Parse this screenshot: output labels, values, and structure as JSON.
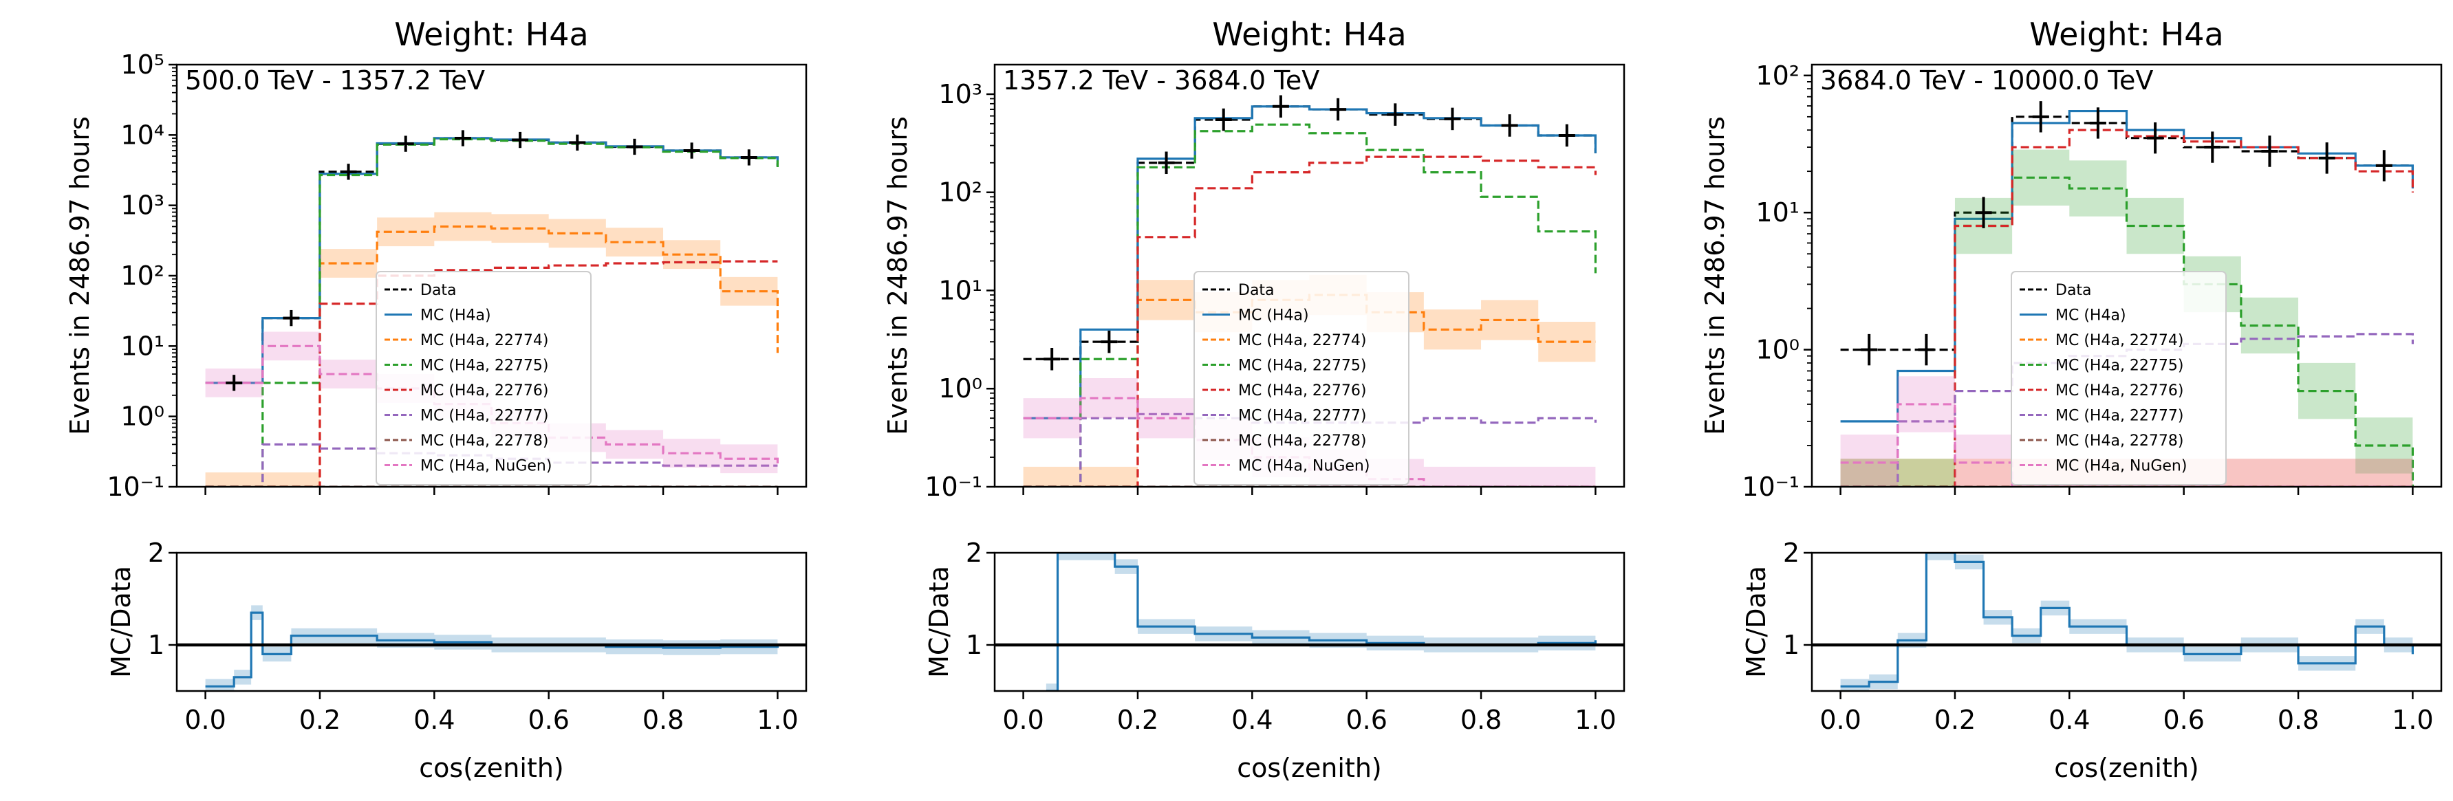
{
  "chart_data": [
    {
      "type": "line",
      "title": "Weight: H4a",
      "annotation": "500.0 TeV - 1357.2 TeV",
      "ylabel": "Events in 2486.97 hours",
      "xlabel": "cos(zenith)",
      "yscale": "log",
      "ylim": [
        0.1,
        100000
      ],
      "xlim": [
        -0.05,
        1.05
      ],
      "x_ticks": [
        0.0,
        0.2,
        0.4,
        0.6,
        0.8,
        1.0
      ],
      "x_tick_labels": [
        "0.0",
        "0.2",
        "0.4",
        "0.6",
        "0.8",
        "1.0"
      ],
      "y_ticks": [
        0.1,
        1,
        10,
        100,
        1000,
        10000,
        100000
      ],
      "y_tick_labels": [
        "10⁻¹",
        "10⁰",
        "10¹",
        "10²",
        "10³",
        "10⁴",
        "10⁵"
      ],
      "legend_position": "center",
      "x": [
        0.0,
        0.1,
        0.2,
        0.3,
        0.4,
        0.5,
        0.6,
        0.7,
        0.8,
        0.9,
        1.0
      ],
      "series": [
        {
          "name": "Data",
          "style": "dashed",
          "color": "#000000",
          "values": [
            3,
            25,
            3000,
            7500,
            9000,
            8500,
            7800,
            6800,
            6000,
            4800,
            3600
          ]
        },
        {
          "name": "MC (H4a)",
          "style": "solid",
          "color": "#1f77b4",
          "values": [
            3,
            25,
            2800,
            7600,
            9000,
            8600,
            7800,
            6900,
            6000,
            4800,
            3600
          ]
        },
        {
          "name": "MC (H4a, 22774)",
          "style": "dashed",
          "color": "#ff7f0e",
          "band": true,
          "values": [
            0.1,
            0.1,
            150,
            420,
            500,
            470,
            400,
            300,
            200,
            60,
            8
          ]
        },
        {
          "name": "MC (H4a, 22775)",
          "style": "dashed",
          "color": "#2ca02c",
          "values": [
            0.1,
            3,
            2700,
            7300,
            8700,
            8300,
            7500,
            6700,
            5800,
            4700,
            3500
          ]
        },
        {
          "name": "MC (H4a, 22776)",
          "style": "dashed",
          "color": "#d62728",
          "values": [
            0.1,
            0.1,
            40,
            100,
            120,
            130,
            140,
            150,
            155,
            160,
            160
          ]
        },
        {
          "name": "MC (H4a, 22777)",
          "style": "dashed",
          "color": "#9467bd",
          "values": [
            0.1,
            0.4,
            0.35,
            0.3,
            0.28,
            0.25,
            0.22,
            0.22,
            0.2,
            0.2,
            0.2
          ]
        },
        {
          "name": "MC (H4a, 22778)",
          "style": "dashed",
          "color": "#8c564b",
          "values": [
            0.1,
            0.1,
            0.1,
            0.1,
            0.1,
            0.1,
            0.1,
            0.1,
            0.1,
            0.1,
            0.1
          ]
        },
        {
          "name": "MC (H4a, NuGen)",
          "style": "dashed",
          "color": "#e377c2",
          "band": true,
          "values": [
            3,
            10,
            4,
            2.5,
            1.5,
            0.8,
            0.5,
            0.4,
            0.3,
            0.25,
            0.2
          ]
        }
      ],
      "ratio": {
        "ylabel": "MC/Data",
        "ylim": [
          0.5,
          2
        ],
        "y_ticks": [
          1,
          2
        ],
        "y_tick_labels": [
          "1",
          "2"
        ],
        "x": [
          0.0,
          0.05,
          0.08,
          0.1,
          0.15,
          0.2,
          0.3,
          0.4,
          0.5,
          0.6,
          0.7,
          0.8,
          0.9,
          1.0
        ],
        "values": [
          0.55,
          0.65,
          1.35,
          0.9,
          1.1,
          1.1,
          1.05,
          1.03,
          1.0,
          1.0,
          0.98,
          0.97,
          0.98,
          1.0
        ]
      }
    },
    {
      "type": "line",
      "title": "Weight: H4a",
      "annotation": "1357.2 TeV - 3684.0 TeV",
      "ylabel": "Events in 2486.97 hours",
      "xlabel": "cos(zenith)",
      "yscale": "log",
      "ylim": [
        0.1,
        2000
      ],
      "xlim": [
        -0.05,
        1.05
      ],
      "x_ticks": [
        0.0,
        0.2,
        0.4,
        0.6,
        0.8,
        1.0
      ],
      "x_tick_labels": [
        "0.0",
        "0.2",
        "0.4",
        "0.6",
        "0.8",
        "1.0"
      ],
      "y_ticks": [
        0.1,
        1,
        10,
        100,
        1000
      ],
      "y_tick_labels": [
        "10⁻¹",
        "10⁰",
        "10¹",
        "10²",
        "10³"
      ],
      "legend_position": "center",
      "x": [
        0.0,
        0.1,
        0.2,
        0.3,
        0.4,
        0.5,
        0.6,
        0.7,
        0.8,
        0.9,
        1.0
      ],
      "series": [
        {
          "name": "Data",
          "style": "dashed",
          "color": "#000000",
          "values": [
            2,
            3,
            200,
            550,
            750,
            700,
            620,
            560,
            480,
            380,
            250
          ]
        },
        {
          "name": "MC (H4a)",
          "style": "solid",
          "color": "#1f77b4",
          "values": [
            0.5,
            4,
            220,
            570,
            750,
            700,
            640,
            570,
            480,
            380,
            250
          ]
        },
        {
          "name": "MC (H4a, 22774)",
          "style": "dashed",
          "color": "#ff7f0e",
          "band": true,
          "values": [
            0.1,
            0.1,
            8,
            6,
            8,
            9,
            6,
            4,
            5,
            3,
            3
          ]
        },
        {
          "name": "MC (H4a, 22775)",
          "style": "dashed",
          "color": "#2ca02c",
          "values": [
            0.1,
            2,
            180,
            420,
            490,
            400,
            270,
            160,
            90,
            40,
            15
          ]
        },
        {
          "name": "MC (H4a, 22776)",
          "style": "dashed",
          "color": "#d62728",
          "values": [
            0.1,
            0.1,
            35,
            110,
            160,
            200,
            230,
            230,
            210,
            180,
            150
          ]
        },
        {
          "name": "MC (H4a, 22777)",
          "style": "dashed",
          "color": "#9467bd",
          "values": [
            0.1,
            0.5,
            0.55,
            0.5,
            0.45,
            0.45,
            0.45,
            0.5,
            0.45,
            0.5,
            0.45
          ]
        },
        {
          "name": "MC (H4a, 22778)",
          "style": "dashed",
          "color": "#8c564b",
          "values": [
            0.1,
            0.1,
            0.1,
            0.1,
            0.1,
            0.1,
            0.1,
            0.1,
            0.1,
            0.1,
            0.1
          ]
        },
        {
          "name": "MC (H4a, NuGen)",
          "style": "dashed",
          "color": "#e377c2",
          "band": true,
          "values": [
            0.5,
            0.8,
            0.5,
            0.3,
            0.2,
            0.15,
            0.12,
            0.1,
            0.1,
            0.1,
            0.1
          ]
        }
      ],
      "ratio": {
        "ylabel": "MC/Data",
        "ylim": [
          0.5,
          2
        ],
        "y_ticks": [
          1,
          2
        ],
        "y_tick_labels": [
          "1",
          "2"
        ],
        "x": [
          0.04,
          0.06,
          0.16,
          0.2,
          0.3,
          0.4,
          0.5,
          0.6,
          0.7,
          0.8,
          0.9,
          1.0
        ],
        "values": [
          0.5,
          2.0,
          1.85,
          1.2,
          1.12,
          1.08,
          1.05,
          1.02,
          1.0,
          1.0,
          1.02,
          1.05
        ]
      }
    },
    {
      "type": "line",
      "title": "Weight: H4a",
      "annotation": "3684.0 TeV - 10000.0 TeV",
      "ylabel": "Events in 2486.97 hours",
      "xlabel": "cos(zenith)",
      "yscale": "log",
      "ylim": [
        0.1,
        120
      ],
      "xlim": [
        -0.05,
        1.05
      ],
      "x_ticks": [
        0.0,
        0.2,
        0.4,
        0.6,
        0.8,
        1.0
      ],
      "x_tick_labels": [
        "0.0",
        "0.2",
        "0.4",
        "0.6",
        "0.8",
        "1.0"
      ],
      "y_ticks": [
        0.1,
        1,
        10,
        100
      ],
      "y_tick_labels": [
        "10⁻¹",
        "10⁰",
        "10¹",
        "10²"
      ],
      "legend_position": "center",
      "x": [
        0.0,
        0.1,
        0.2,
        0.3,
        0.4,
        0.5,
        0.6,
        0.7,
        0.8,
        0.9,
        1.0
      ],
      "series": [
        {
          "name": "Data",
          "style": "dashed",
          "color": "#000000",
          "values": [
            1,
            1,
            10,
            50,
            45,
            35,
            30,
            28,
            25,
            22,
            18
          ]
        },
        {
          "name": "MC (H4a)",
          "style": "solid",
          "color": "#1f77b4",
          "values": [
            0.3,
            0.7,
            9,
            45,
            55,
            40,
            35,
            30,
            27,
            22,
            15
          ]
        },
        {
          "name": "MC (H4a, 22774)",
          "style": "dashed",
          "color": "#ff7f0e",
          "band": true,
          "values": [
            0.1,
            0.1,
            0.1,
            0.1,
            0.1,
            0.1,
            0.1,
            0.1,
            0.1,
            0.1,
            0.1
          ]
        },
        {
          "name": "MC (H4a, 22775)",
          "style": "dashed",
          "color": "#2ca02c",
          "band": true,
          "values": [
            0.1,
            0.1,
            8,
            18,
            15,
            8,
            3,
            1.5,
            0.5,
            0.2,
            0.1
          ]
        },
        {
          "name": "MC (H4a, 22776)",
          "style": "dashed",
          "color": "#d62728",
          "values": [
            0.1,
            0.1,
            8,
            30,
            40,
            36,
            33,
            30,
            25,
            20,
            14
          ]
        },
        {
          "name": "MC (H4a, 22777)",
          "style": "dashed",
          "color": "#9467bd",
          "values": [
            0.1,
            0.3,
            0.5,
            0.8,
            0.9,
            1.0,
            1.1,
            1.2,
            1.25,
            1.3,
            1.1
          ]
        },
        {
          "name": "MC (H4a, 22778)",
          "style": "dashed",
          "color": "#8c564b",
          "values": [
            0.1,
            0.1,
            0.1,
            0.1,
            0.1,
            0.1,
            0.1,
            0.1,
            0.1,
            0.1,
            0.1
          ]
        },
        {
          "name": "MC (H4a, NuGen)",
          "style": "dashed",
          "color": "#e377c2",
          "band": true,
          "values": [
            0.15,
            0.4,
            0.15,
            0.1,
            0.1,
            0.1,
            0.1,
            0.1,
            0.1,
            0.1,
            0.1
          ]
        }
      ],
      "ratio": {
        "ylabel": "MC/Data",
        "ylim": [
          0.5,
          2
        ],
        "y_ticks": [
          1,
          2
        ],
        "y_tick_labels": [
          "1",
          "2"
        ],
        "x": [
          0.0,
          0.05,
          0.1,
          0.15,
          0.2,
          0.25,
          0.3,
          0.35,
          0.4,
          0.5,
          0.6,
          0.7,
          0.8,
          0.9,
          0.95,
          1.0
        ],
        "values": [
          0.55,
          0.6,
          1.05,
          2.0,
          1.9,
          1.3,
          1.1,
          1.4,
          1.2,
          1.0,
          0.9,
          1.0,
          0.8,
          1.2,
          1.0,
          0.9
        ]
      }
    }
  ]
}
